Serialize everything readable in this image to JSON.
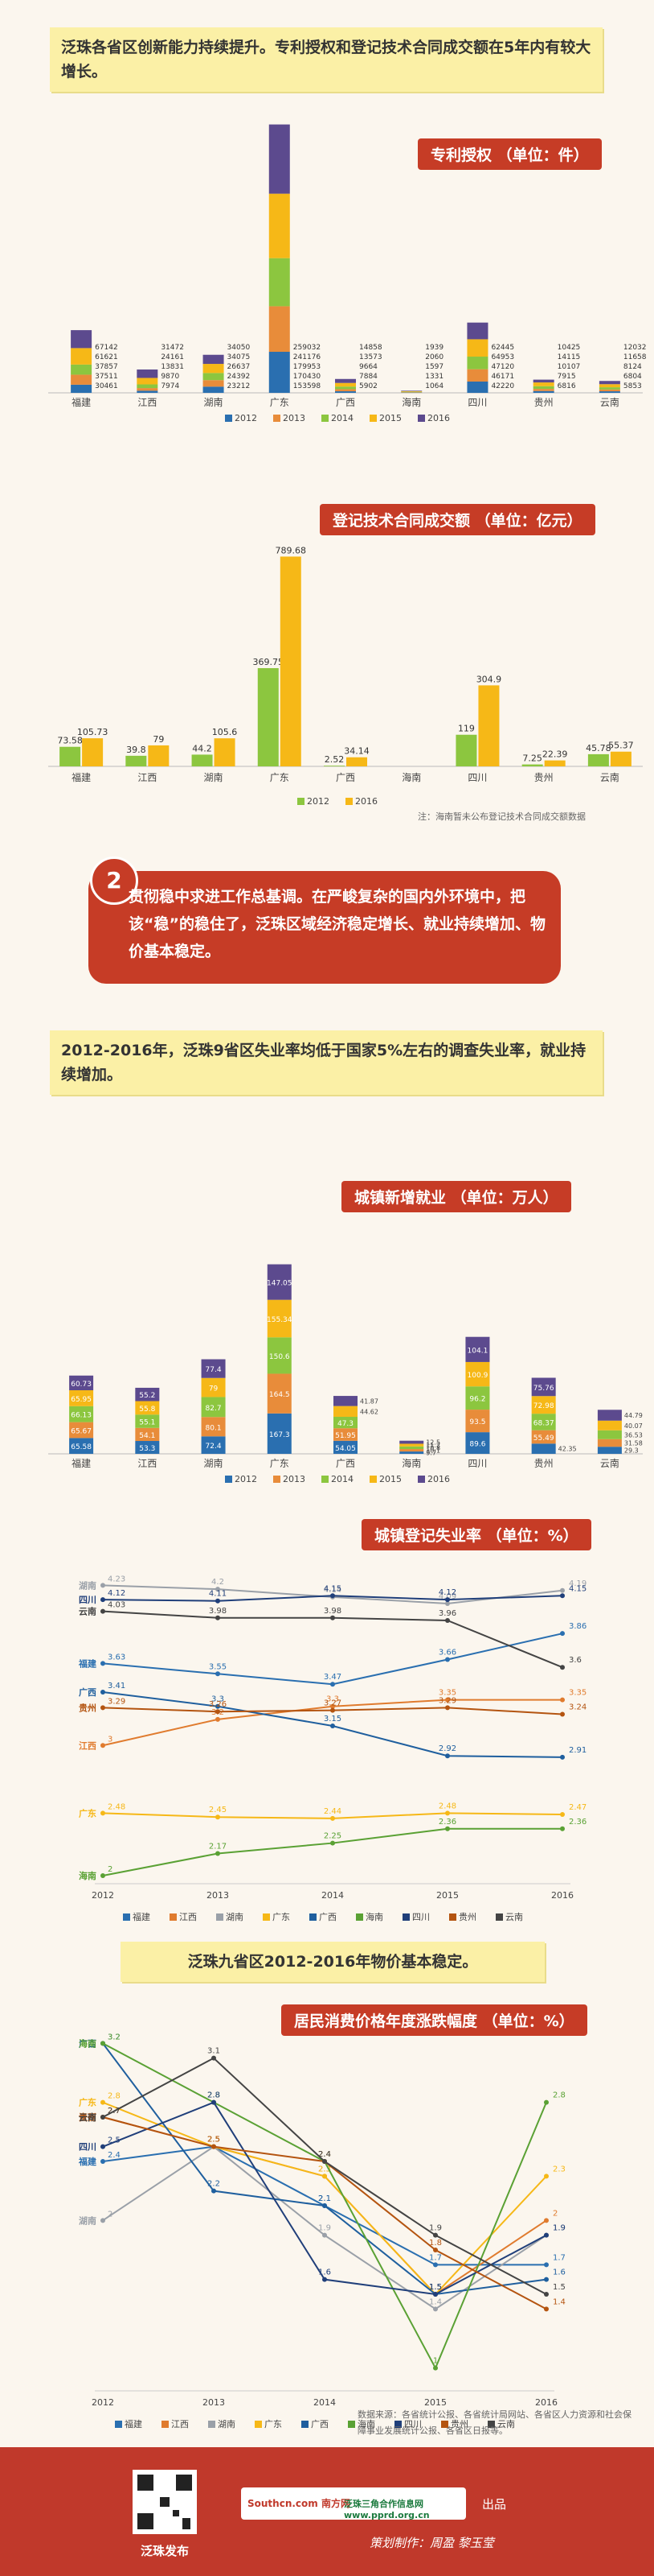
{
  "section1": {
    "note": "泛珠各省区创新能力持续提升。专利授权和登记技术合同成交额在5年内有较大增长。"
  },
  "section2": {
    "num": "2",
    "text": "贯彻稳中求进工作总基调。在严峻复杂的国内外环境中，把该“稳”的稳住了，泛珠区域经济稳定增长、就业持续增加、物价基本稳定。"
  },
  "section3": {
    "note": "2012-2016年，泛珠9省区失业率均低于国家5%左右的调查失业率，就业持续增加。"
  },
  "section4": {
    "note": "泛珠九省区2012-2016年物价基本稳定。"
  },
  "footer": {
    "source": "数据来源：各省统计公报、各省统计局网站、各省区人力资源和社会保障事业发展统计公报、各省区日报等。",
    "publisher": "泛珠发布",
    "chupin": "出品",
    "producer": "策划制作：周盈 黎玉莹",
    "logo1": "Southcn.com 南方网",
    "logo2": "泛珠三角合作信息网 www.pprd.org.cn"
  },
  "colors": {
    "accent": "#c63c26",
    "note_bg": "#fbf0a6",
    "y2012": "#2a6fb0",
    "y2013": "#e88c3a",
    "y2014": "#8cc63f",
    "y2015": "#f6b817",
    "y2016": "#5c4a8e"
  },
  "chart_data": [
    {
      "id": "patent",
      "type": "bar",
      "stacked": true,
      "title": "专利授权 （单位：件）",
      "categories": [
        "福建",
        "江西",
        "湖南",
        "广东",
        "广西",
        "海南",
        "四川",
        "贵州",
        "云南"
      ],
      "series": [
        {
          "name": "2012",
          "values": [
            30461,
            7974,
            23212,
            153598,
            5902,
            1064,
            42220,
            6816,
            5853
          ]
        },
        {
          "name": "2013",
          "values": [
            37511,
            9870,
            24392,
            170430,
            7884,
            1331,
            46171,
            7915,
            6804
          ]
        },
        {
          "name": "2014",
          "values": [
            37857,
            13831,
            26637,
            179953,
            9664,
            1597,
            47120,
            10107,
            8124
          ]
        },
        {
          "name": "2015",
          "values": [
            61621,
            24161,
            34075,
            241176,
            13573,
            2060,
            64953,
            14115,
            11658
          ]
        },
        {
          "name": "2016",
          "values": [
            67142,
            31472,
            34050,
            259032,
            14858,
            1939,
            62445,
            10425,
            12032
          ]
        }
      ]
    },
    {
      "id": "contract",
      "type": "bar",
      "title": "登记技术合同成交额 （单位：亿元）",
      "note": "注：海南暂未公布登记技术合同成交额数据",
      "categories": [
        "福建",
        "江西",
        "湖南",
        "广东",
        "广西",
        "海南",
        "四川",
        "贵州",
        "云南"
      ],
      "series": [
        {
          "name": "2012",
          "values": [
            73.58,
            39.8,
            44.2,
            369.75,
            2.52,
            null,
            119,
            7.25,
            45.78
          ]
        },
        {
          "name": "2016",
          "values": [
            105.73,
            79,
            105.6,
            789.68,
            34.14,
            null,
            304.9,
            22.39,
            55.37
          ]
        }
      ]
    },
    {
      "id": "employment",
      "type": "bar",
      "stacked": true,
      "title": "城镇新增就业 （单位：万人）",
      "categories": [
        "福建",
        "江西",
        "湖南",
        "广东",
        "广西",
        "海南",
        "四川",
        "贵州",
        "云南"
      ],
      "series": [
        {
          "name": "2012",
          "values": [
            65.58,
            53.3,
            72.4,
            167.3,
            54.05,
            9.7,
            89.6,
            42.35,
            29.3
          ]
        },
        {
          "name": "2013",
          "values": [
            65.67,
            54.1,
            80.1,
            164.5,
            51.95,
            10.1,
            93.5,
            55.49,
            31.58
          ]
        },
        {
          "name": "2014",
          "values": [
            66.13,
            55.1,
            82.7,
            150.6,
            47.3,
            10.8,
            96.2,
            68.37,
            36.53
          ]
        },
        {
          "name": "2015",
          "values": [
            65.95,
            55.8,
            79,
            155.34,
            44.62,
            11.2,
            100.9,
            72.98,
            40.07
          ]
        },
        {
          "name": "2016",
          "values": [
            60.73,
            55.2,
            77.4,
            147.05,
            41.87,
            12.5,
            104.1,
            75.76,
            44.79
          ]
        }
      ]
    },
    {
      "id": "unemployment",
      "type": "line",
      "title": "城镇登记失业率 （单位：%）",
      "x": [
        "2012",
        "2013",
        "2014",
        "2015",
        "2016"
      ],
      "series": [
        {
          "name": "福建",
          "values": [
            3.63,
            3.55,
            3.47,
            3.66,
            3.86
          ]
        },
        {
          "name": "江西",
          "values": [
            3,
            3.2,
            3.3,
            3.35,
            3.35
          ]
        },
        {
          "name": "湖南",
          "values": [
            4.23,
            4.2,
            4.14,
            4.09,
            4.19
          ]
        },
        {
          "name": "广东",
          "values": [
            2.48,
            2.45,
            2.44,
            2.48,
            2.47
          ]
        },
        {
          "name": "广西",
          "values": [
            3.41,
            3.3,
            3.15,
            2.92,
            2.91
          ]
        },
        {
          "name": "海南",
          "values": [
            2,
            2.17,
            2.25,
            2.36,
            2.36
          ]
        },
        {
          "name": "四川",
          "values": [
            4.12,
            4.11,
            4.15,
            4.12,
            4.15
          ]
        },
        {
          "name": "贵州",
          "values": [
            3.29,
            3.26,
            3.27,
            3.29,
            3.24
          ]
        },
        {
          "name": "云南",
          "values": [
            4.03,
            3.98,
            3.98,
            3.96,
            3.6
          ]
        }
      ]
    },
    {
      "id": "cpi",
      "type": "line",
      "title": "居民消费价格年度涨跌幅度 （单位：%）",
      "x": [
        "2012",
        "2013",
        "2014",
        "2015",
        "2016"
      ],
      "series": [
        {
          "name": "福建",
          "values": [
            2.4,
            2.5,
            2.1,
            1.7,
            1.7
          ]
        },
        {
          "name": "江西",
          "values": [
            2.7,
            2.5,
            2.3,
            1.5,
            2
          ]
        },
        {
          "name": "湖南",
          "values": [
            2,
            2.5,
            1.9,
            1.4,
            1.9
          ]
        },
        {
          "name": "广东",
          "values": [
            2.8,
            2.5,
            2.3,
            1.5,
            2.3
          ]
        },
        {
          "name": "广西",
          "values": [
            3.2,
            2.2,
            2.1,
            1.5,
            1.6
          ]
        },
        {
          "name": "海南",
          "values": [
            3.2,
            2.8,
            2.4,
            1,
            2.8
          ]
        },
        {
          "name": "四川",
          "values": [
            2.5,
            2.8,
            1.6,
            1.5,
            1.9
          ]
        },
        {
          "name": "贵州",
          "values": [
            2.7,
            2.5,
            2.4,
            1.8,
            1.4
          ]
        },
        {
          "name": "云南",
          "values": [
            2.7,
            3.1,
            2.4,
            1.9,
            1.5
          ]
        }
      ]
    }
  ]
}
